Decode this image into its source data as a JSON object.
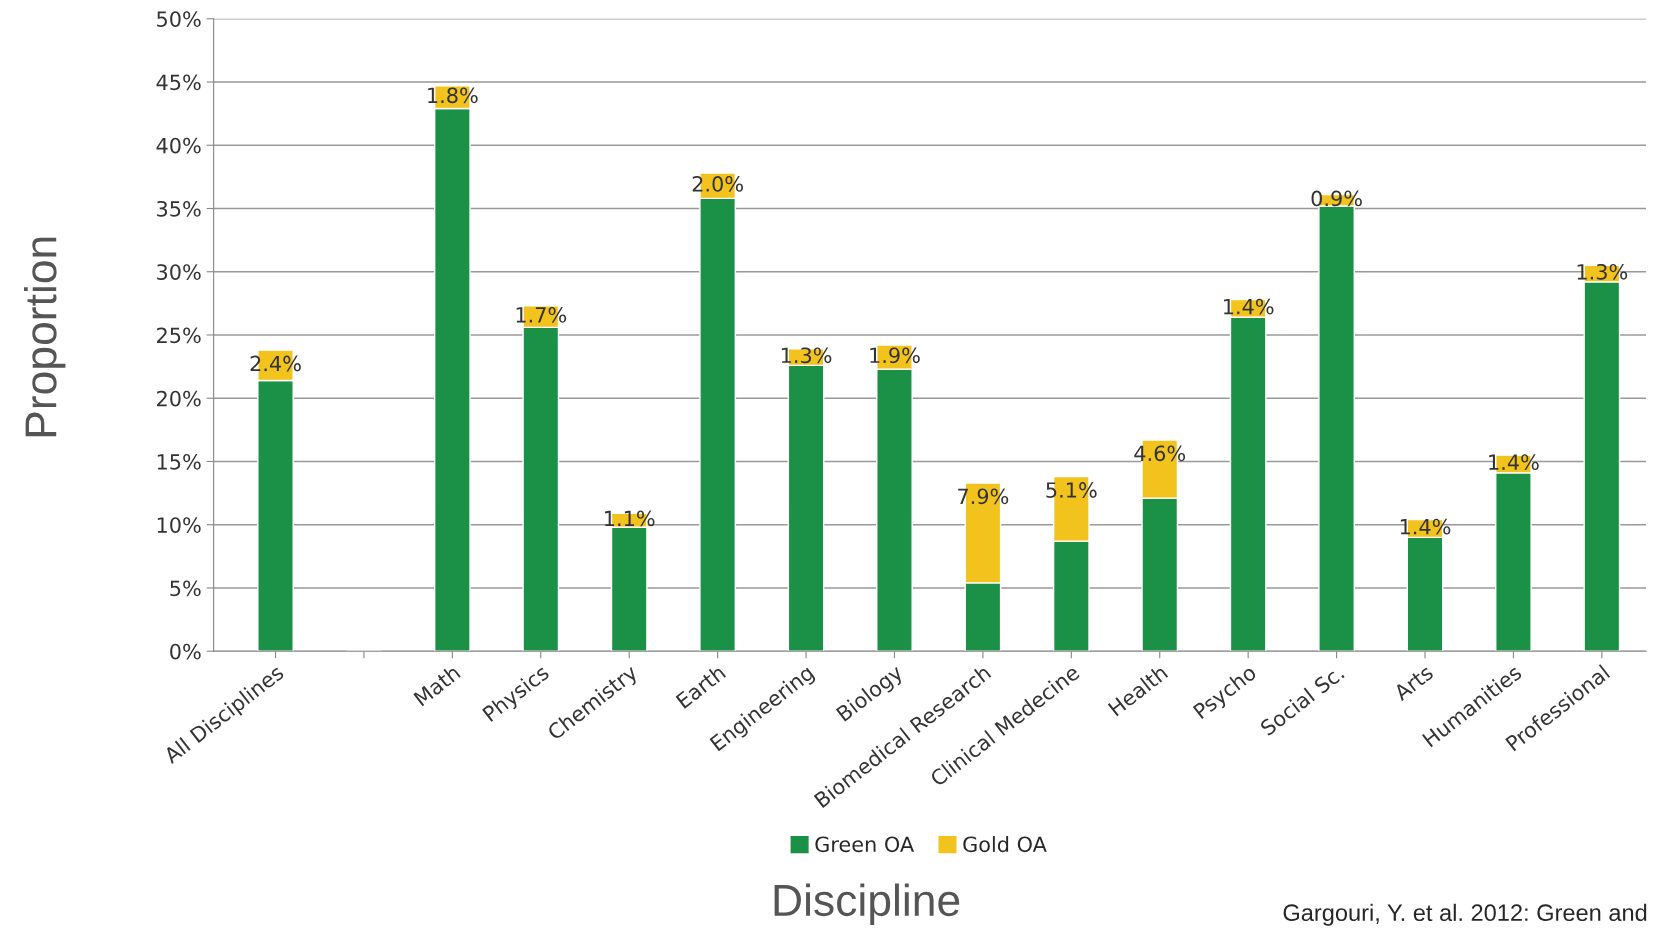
{
  "chart_data": {
    "type": "bar",
    "stacked": true,
    "xlabel": "Discipline",
    "ylabel": "Proportion",
    "categories": [
      "All Disciplines",
      null,
      "Math",
      "Physics",
      "Chemistry",
      "Earth",
      "Engineering",
      "Biology",
      "Biomedical Research",
      "Clinical Medecine",
      "Health",
      "Psycho",
      "Social Sc.",
      "Arts",
      "Humanities",
      "Professional"
    ],
    "series": [
      {
        "name": "Green OA",
        "color": "#1a9146",
        "values": [
          21.4,
          null,
          42.9,
          25.6,
          9.8,
          35.8,
          22.6,
          22.3,
          5.4,
          8.7,
          12.1,
          26.4,
          35.2,
          9.0,
          14.1,
          29.2
        ]
      },
      {
        "name": "Gold OA",
        "color": "#f2c31c",
        "values": [
          2.4,
          null,
          1.8,
          1.7,
          1.1,
          2.0,
          1.3,
          1.9,
          7.9,
          5.1,
          4.6,
          1.4,
          0.9,
          1.4,
          1.4,
          1.3
        ],
        "value_labels": [
          "2.4%",
          null,
          "1.8%",
          "1.7%",
          "1.1%",
          "2.0%",
          "1.3%",
          "1.9%",
          "7.9%",
          "5.1%",
          "4.6%",
          "1.4%",
          "0.9%",
          "1.4%",
          "1.4%",
          "1.3%"
        ]
      }
    ],
    "ylim": [
      0,
      50
    ],
    "yticks": [
      {
        "value": 0,
        "label": "0%"
      },
      {
        "value": 5,
        "label": "5%"
      },
      {
        "value": 10,
        "label": "10%"
      },
      {
        "value": 15,
        "label": "15%"
      },
      {
        "value": 20,
        "label": "20%"
      },
      {
        "value": 25,
        "label": "25%"
      },
      {
        "value": 30,
        "label": "30%"
      },
      {
        "value": 35,
        "label": "35%"
      },
      {
        "value": 40,
        "label": "40%"
      },
      {
        "value": 45,
        "label": "45%"
      },
      {
        "value": 50,
        "label": "50%"
      }
    ],
    "grid": "y",
    "legend": "bottom",
    "annotations": [
      "Gargouri, Y. et al. 2012: Green and"
    ]
  }
}
